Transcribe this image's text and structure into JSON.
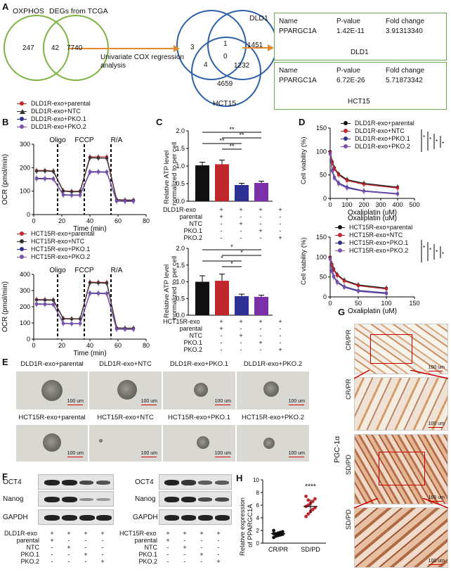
{
  "panels": {
    "a": "A",
    "b": "B",
    "c": "C",
    "d": "D",
    "e": "E",
    "f": "F",
    "g": "G",
    "h": "H"
  },
  "venn1": {
    "left": "OXPHOS",
    "right": "DEGs from TCGA",
    "left_only": "247",
    "overlap": "42",
    "right_only": "7740",
    "arrow_label": "Univariate COX regression analysis"
  },
  "venn2": {
    "top_left": "DLD1",
    "bottom": "HCT15",
    "n3": "3",
    "n1451": "1451",
    "n1": "1",
    "n0": "0",
    "n4": "4",
    "n1232": "1232",
    "n4659": "4659"
  },
  "tables": [
    {
      "headers": [
        "Name",
        "P-value",
        "Fold change"
      ],
      "values": [
        "PPARGC1A",
        "1.42E-11",
        "3.91313340"
      ],
      "caption": "DLD1"
    },
    {
      "headers": [
        "Name",
        "P-value",
        "Fold change"
      ],
      "values": [
        "PPARGC1A",
        "6.72E-26",
        "5.71873342"
      ],
      "caption": "HCT15"
    }
  ],
  "ocr": {
    "top_legend": [
      "DLD1R-exo+parental",
      "DLD1R-exo+NTC",
      "DLD1R-exo+PKO.1",
      "DLD1R-exo+PKO.2"
    ],
    "bottom_legend": [
      "HCT15R-exo+parental",
      "HCT15R-exo+NTC",
      "HCT15R-exo+PKO.1",
      "HCT15R-exo+PKO.2"
    ],
    "ylabel": "OCR (pmol/min)",
    "xlabel": "Time (min)",
    "injections": [
      "Oligo",
      "FCCP",
      "R/A"
    ]
  },
  "atp": {
    "ylabel_1": "Relative ATP level",
    "ylabel_2": "normalized to per cell",
    "top_header": "DLD1R-exo",
    "bottom_header": "HCT15R-exo",
    "rows": [
      "parental",
      "NTC",
      "PKO.1",
      "PKO.2"
    ],
    "signs": [
      [
        "+",
        "+",
        "+",
        "+"
      ],
      [
        "+",
        "-",
        "-",
        "-"
      ],
      [
        "-",
        "+",
        "-",
        "-"
      ],
      [
        "-",
        "-",
        "+",
        "-"
      ],
      [
        "-",
        "-",
        "-",
        "+"
      ]
    ],
    "sig_top": [
      "**",
      "**",
      "**",
      "**"
    ],
    "sig_bottom": [
      "*",
      "*",
      "*",
      "*"
    ]
  },
  "viability": {
    "ylabel": "Cell viability (%)",
    "xlabel": "Oxaliplatin (uM)",
    "top_legend": [
      "DLD1R-exo+parental",
      "DLD1R-exo+NTC",
      "DLD1R-exo+PKO.1",
      "DLD1R-exo+PKO.2"
    ],
    "bottom_legend": [
      "HCT15R-exo+parental",
      "HCT15R-exo+NTC",
      "HCT15R-exo+PKO.1",
      "HCT15R-exo+PKO.2"
    ],
    "sig": [
      "*",
      "*",
      "*",
      "*"
    ]
  },
  "spheres": {
    "row1": [
      "DLD1R-exo+parental",
      "DLD1R-exo+NTC",
      "DLD1R-exo+PKO.1",
      "DLD1R-exo+PKO.2"
    ],
    "row2": [
      "HCT15R-exo+parental",
      "HCT15R-exo+NTC",
      "HCT15R-exo+PKO.1",
      "HCT15R-exo+PKO.2"
    ],
    "scale": "100 um"
  },
  "western": {
    "proteins": [
      "OCT4",
      "Nanog",
      "GAPDH"
    ],
    "left_header": "DLD1R-exo",
    "right_header": "HCT15R-exo",
    "rows": [
      "parental",
      "NTC",
      "PKO.1",
      "PKO.2"
    ]
  },
  "expression": {
    "ylabel_1": "Relative expression",
    "ylabel_2": "of PPARGC1A",
    "groups": [
      "CR/PR",
      "SD/PD"
    ],
    "sig": "****",
    "y_ticks": [
      "0",
      "2",
      "4",
      "6",
      "8",
      "10"
    ]
  },
  "ihc": {
    "side_label": "PGC-1α",
    "labels": [
      "CR/PR",
      "CR/PR",
      "SD/PD",
      "SD/PD"
    ],
    "scale": "100 um"
  },
  "chart_data": [
    {
      "type": "line",
      "title": "OCR DLD1R-exo",
      "xlabel": "Time (min)",
      "ylabel": "OCR (pmol/min)",
      "xlim": [
        0,
        80
      ],
      "ylim": [
        0,
        300
      ],
      "xticks": [
        0,
        20,
        40,
        60,
        80
      ],
      "yticks": [
        0,
        100,
        200,
        300
      ],
      "x": [
        2,
        8,
        14,
        21,
        27,
        33,
        40,
        46,
        52,
        59,
        65,
        71
      ],
      "series": [
        {
          "name": "DLD1R-exo+parental",
          "color": "#c0272d",
          "values": [
            188,
            188,
            186,
            102,
            99,
            100,
            246,
            246,
            246,
            64,
            62,
            62
          ]
        },
        {
          "name": "DLD1R-exo+NTC",
          "color": "#333333",
          "values": [
            185,
            186,
            184,
            100,
            97,
            98,
            242,
            241,
            240,
            63,
            61,
            61
          ]
        },
        {
          "name": "DLD1R-exo+PKO.1",
          "color": "#2e3192",
          "values": [
            155,
            154,
            153,
            85,
            83,
            84,
            183,
            183,
            182,
            58,
            57,
            57
          ]
        },
        {
          "name": "DLD1R-exo+PKO.2",
          "color": "#7b52ab",
          "values": [
            152,
            152,
            151,
            83,
            82,
            82,
            180,
            181,
            180,
            57,
            56,
            56
          ]
        }
      ]
    },
    {
      "type": "line",
      "title": "OCR HCT15R-exo",
      "xlabel": "Time (min)",
      "ylabel": "OCR (pmol/min)",
      "xlim": [
        0,
        80
      ],
      "ylim": [
        0,
        400
      ],
      "xticks": [
        0,
        20,
        40,
        60,
        80
      ],
      "yticks": [
        0,
        100,
        200,
        300,
        400
      ],
      "x": [
        2,
        8,
        14,
        21,
        27,
        33,
        40,
        46,
        52,
        59,
        65,
        71
      ],
      "series": [
        {
          "name": "HCT15R-exo+parental",
          "color": "#c0272d",
          "values": [
            245,
            244,
            243,
            128,
            126,
            126,
            352,
            351,
            350,
            70,
            68,
            68
          ]
        },
        {
          "name": "HCT15R-exo+NTC",
          "color": "#333333",
          "values": [
            242,
            241,
            240,
            126,
            124,
            125,
            348,
            347,
            346,
            69,
            67,
            67
          ]
        },
        {
          "name": "HCT15R-exo+PKO.1",
          "color": "#2e3192",
          "values": [
            218,
            217,
            215,
            98,
            96,
            97,
            285,
            284,
            283,
            62,
            61,
            61
          ]
        },
        {
          "name": "HCT15R-exo+PKO.2",
          "color": "#7b52ab",
          "values": [
            215,
            214,
            213,
            96,
            95,
            95,
            282,
            281,
            280,
            61,
            60,
            60
          ]
        }
      ]
    },
    {
      "type": "bar",
      "title": "ATP DLD1R-exo",
      "categories": [
        "parental",
        "NTC",
        "PKO.1",
        "PKO.2"
      ],
      "values": [
        1.02,
        1.05,
        0.46,
        0.52
      ],
      "errors": [
        0.09,
        0.12,
        0.05,
        0.05
      ],
      "colors": [
        "#111111",
        "#c0272d",
        "#2e3192",
        "#7b2fa8"
      ],
      "ylim": [
        0,
        2.0
      ],
      "yticks": [
        0,
        0.5,
        1.0,
        1.5,
        2.0
      ]
    },
    {
      "type": "bar",
      "title": "ATP HCT15R-exo",
      "categories": [
        "parental",
        "NTC",
        "PKO.1",
        "PKO.2"
      ],
      "values": [
        1.0,
        1.03,
        0.57,
        0.55
      ],
      "errors": [
        0.18,
        0.2,
        0.06,
        0.05
      ],
      "colors": [
        "#111111",
        "#c0272d",
        "#2e3192",
        "#7b2fa8"
      ],
      "ylim": [
        0,
        2.0
      ],
      "yticks": [
        0,
        0.5,
        1.0,
        1.5,
        2.0
      ]
    },
    {
      "type": "line",
      "title": "Viability DLD1R-exo",
      "xlabel": "Oxaliplatin (uM)",
      "ylabel": "Cell viability (%)",
      "xlim": [
        0,
        500
      ],
      "ylim": [
        0,
        150
      ],
      "xticks": [
        0,
        100,
        200,
        300,
        400,
        500
      ],
      "yticks": [
        0,
        50,
        100,
        150
      ],
      "x": [
        0,
        12.5,
        25,
        50,
        100,
        200,
        400
      ],
      "series": [
        {
          "name": "DLD1R-exo+parental",
          "color": "#111111",
          "values": [
            100,
            78,
            65,
            52,
            40,
            32,
            24
          ]
        },
        {
          "name": "DLD1R-exo+NTC",
          "color": "#c0272d",
          "values": [
            98,
            76,
            63,
            50,
            38,
            30,
            22
          ]
        },
        {
          "name": "DLD1R-exo+PKO.1",
          "color": "#2e3192",
          "values": [
            95,
            60,
            45,
            33,
            24,
            16,
            10
          ]
        },
        {
          "name": "DLD1R-exo+PKO.2",
          "color": "#7b52ab",
          "values": [
            94,
            58,
            43,
            31,
            22,
            15,
            9
          ]
        }
      ]
    },
    {
      "type": "line",
      "title": "Viability HCT15R-exo",
      "xlabel": "Oxaliplatin (uM)",
      "ylabel": "Cell viability (%)",
      "xlim": [
        0,
        150
      ],
      "ylim": [
        0,
        150
      ],
      "xticks": [
        0,
        50,
        100,
        150
      ],
      "yticks": [
        0,
        50,
        100,
        150
      ],
      "x": [
        0,
        3.1,
        6.25,
        12.5,
        25,
        50,
        100
      ],
      "series": [
        {
          "name": "HCT15R-exo+parental",
          "color": "#111111",
          "values": [
            100,
            82,
            70,
            56,
            42,
            30,
            22
          ]
        },
        {
          "name": "HCT15R-exo+NTC",
          "color": "#c0272d",
          "values": [
            98,
            80,
            68,
            54,
            40,
            28,
            20
          ]
        },
        {
          "name": "HCT15R-exo+PKO.1",
          "color": "#2e3192",
          "values": [
            95,
            66,
            52,
            38,
            26,
            16,
            10
          ]
        },
        {
          "name": "HCT15R-exo+PKO.2",
          "color": "#7b52ab",
          "values": [
            94,
            64,
            50,
            36,
            24,
            14,
            8
          ]
        }
      ]
    },
    {
      "type": "scatter",
      "title": "Relative expression of PPARGC1A",
      "categories": [
        "CR/PR",
        "SD/PD"
      ],
      "ylim": [
        0,
        10
      ],
      "groups": [
        {
          "name": "CR/PR",
          "mean": 1.5,
          "sd": 0.4,
          "values": [
            0.9,
            1.1,
            1.2,
            1.3,
            1.4,
            1.5,
            1.5,
            1.6,
            1.7,
            1.8,
            2.0,
            1.2
          ]
        },
        {
          "name": "SD/PD",
          "mean": 5.8,
          "sd": 1.1,
          "values": [
            4.2,
            4.6,
            5.0,
            5.3,
            5.6,
            5.8,
            6.0,
            6.3,
            6.6,
            7.0,
            7.4,
            6.8
          ]
        }
      ]
    }
  ]
}
